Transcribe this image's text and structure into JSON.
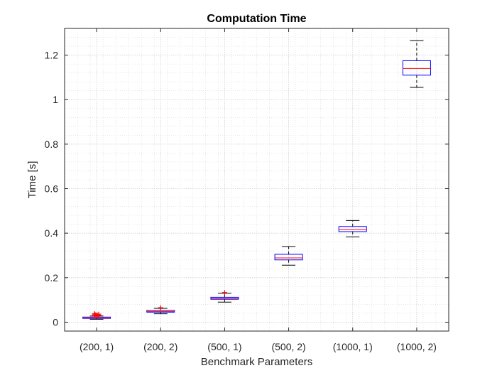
{
  "chart_data": {
    "type": "boxplot",
    "title": "Computation Time",
    "xlabel": "Benchmark Parameters",
    "ylabel": "Time [s]",
    "ylim": [
      -0.04,
      1.32
    ],
    "yticks": [
      0,
      0.2,
      0.4,
      0.6,
      0.8,
      1,
      1.2
    ],
    "ytick_labels": [
      "0",
      "0.2",
      "0.4",
      "0.6",
      "0.8",
      "1",
      "1.2"
    ],
    "grid": true,
    "minor_grid": true,
    "colors": {
      "box": "#0000ff",
      "median": "#ff0000",
      "whisker": "#000000",
      "outlier": "#ff0000",
      "grid": "#d9d9d9"
    },
    "categories": [
      "(200, 1)",
      "(200, 2)",
      "(500, 1)",
      "(500, 2)",
      "(1000, 1)",
      "(1000, 2)"
    ],
    "boxes": [
      {
        "whisker_low": 0.013,
        "q1": 0.017,
        "median": 0.019,
        "q3": 0.023,
        "whisker_high": 0.028,
        "outliers": [
          0.03,
          0.032,
          0.034,
          0.036,
          0.038,
          0.031,
          0.033
        ]
      },
      {
        "whisker_low": 0.038,
        "q1": 0.045,
        "median": 0.048,
        "q3": 0.053,
        "whisker_high": 0.062,
        "outliers": [
          0.065
        ]
      },
      {
        "whisker_low": 0.09,
        "q1": 0.103,
        "median": 0.107,
        "q3": 0.112,
        "whisker_high": 0.13,
        "outliers": [
          0.133
        ]
      },
      {
        "whisker_low": 0.256,
        "q1": 0.28,
        "median": 0.289,
        "q3": 0.305,
        "whisker_high": 0.34,
        "outliers": []
      },
      {
        "whisker_low": 0.383,
        "q1": 0.407,
        "median": 0.416,
        "q3": 0.43,
        "whisker_high": 0.457,
        "outliers": []
      },
      {
        "whisker_low": 1.055,
        "q1": 1.11,
        "median": 1.14,
        "q3": 1.175,
        "whisker_high": 1.265,
        "outliers": []
      }
    ]
  }
}
